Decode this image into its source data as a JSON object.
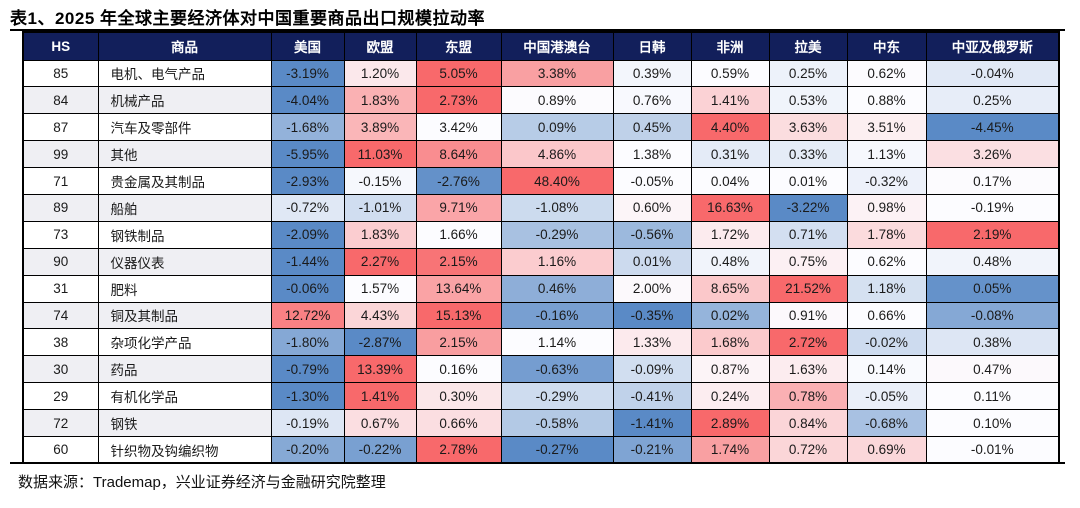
{
  "title": "表1、2025 年全球主要经济体对中国重要商品出口规模拉动率",
  "footer": "数据来源：Trademap，兴业证券经济与金融研究院整理",
  "colors": {
    "header_bg": "#121F5B",
    "header_text": "#FFFFFF",
    "row_band": "#EFEFF3",
    "row_plain": "#FFFFFF",
    "border": "#000000",
    "heatmap_min": "#5A8AC6",
    "heatmap_mid": "#FCFCFF",
    "heatmap_max": "#F8696B"
  },
  "chart_data": {
    "type": "heatmap",
    "title": "表1、2025 年全球主要经济体对中国重要商品出口规模拉动率",
    "unit": "%",
    "color_scale": "per-row 3-color scale: row min = blue #5A8AC6, row median = white #FCFCFF, row max = red #F8696B",
    "columns": [
      "HS",
      "商品",
      "美国",
      "欧盟",
      "东盟",
      "中国港澳台",
      "日韩",
      "非洲",
      "拉美",
      "中东",
      "中亚及俄罗斯"
    ],
    "value_columns": [
      "美国",
      "欧盟",
      "东盟",
      "中国港澳台",
      "日韩",
      "非洲",
      "拉美",
      "中东",
      "中亚及俄罗斯"
    ],
    "rows": [
      {
        "hs": "85",
        "name": "电机、电气产品",
        "values": [
          -3.19,
          1.2,
          5.05,
          3.38,
          0.39,
          0.59,
          0.25,
          0.62,
          -0.04
        ]
      },
      {
        "hs": "84",
        "name": "机械产品",
        "values": [
          -4.04,
          1.83,
          2.73,
          0.89,
          0.76,
          1.41,
          0.53,
          0.88,
          0.25
        ]
      },
      {
        "hs": "87",
        "name": "汽车及零部件",
        "values": [
          -1.68,
          3.89,
          3.42,
          0.09,
          0.45,
          4.4,
          3.63,
          3.51,
          -4.45
        ]
      },
      {
        "hs": "99",
        "name": "其他",
        "values": [
          -5.95,
          11.03,
          8.64,
          4.86,
          1.38,
          0.31,
          0.33,
          1.13,
          3.26
        ]
      },
      {
        "hs": "71",
        "name": "贵金属及其制品",
        "values": [
          -2.93,
          -0.15,
          -2.76,
          48.4,
          -0.05,
          0.04,
          0.01,
          -0.32,
          0.17
        ]
      },
      {
        "hs": "89",
        "name": "船舶",
        "values": [
          -0.72,
          -1.01,
          9.71,
          -1.08,
          0.6,
          16.63,
          -3.22,
          0.98,
          -0.19
        ]
      },
      {
        "hs": "73",
        "name": "钢铁制品",
        "values": [
          -2.09,
          1.83,
          1.66,
          -0.29,
          -0.56,
          1.72,
          0.71,
          1.78,
          2.19
        ]
      },
      {
        "hs": "90",
        "name": "仪器仪表",
        "values": [
          -1.44,
          2.27,
          2.15,
          1.16,
          0.01,
          0.48,
          0.75,
          0.62,
          0.48
        ]
      },
      {
        "hs": "31",
        "name": "肥料",
        "values": [
          -0.06,
          1.57,
          13.64,
          0.46,
          2.0,
          8.65,
          21.52,
          1.18,
          0.05
        ]
      },
      {
        "hs": "74",
        "name": "铜及其制品",
        "values": [
          12.72,
          4.43,
          15.13,
          -0.16,
          -0.35,
          0.02,
          0.91,
          0.66,
          -0.08
        ]
      },
      {
        "hs": "38",
        "name": "杂项化学产品",
        "values": [
          -1.8,
          -2.87,
          2.15,
          1.14,
          1.33,
          1.68,
          2.72,
          -0.02,
          0.38
        ]
      },
      {
        "hs": "30",
        "name": "药品",
        "values": [
          -0.79,
          13.39,
          0.16,
          -0.63,
          -0.09,
          0.87,
          1.63,
          0.14,
          0.47
        ]
      },
      {
        "hs": "29",
        "name": "有机化学品",
        "values": [
          -1.3,
          1.41,
          0.3,
          -0.29,
          -0.41,
          0.24,
          0.78,
          -0.05,
          0.11
        ]
      },
      {
        "hs": "72",
        "name": "钢铁",
        "values": [
          -0.19,
          0.67,
          0.66,
          -0.58,
          -1.41,
          2.89,
          0.84,
          -0.68,
          0.1
        ]
      },
      {
        "hs": "60",
        "name": "针织物及钩编织物",
        "values": [
          -0.2,
          -0.22,
          2.78,
          -0.27,
          -0.21,
          1.74,
          0.72,
          0.69,
          -0.01
        ]
      }
    ]
  }
}
